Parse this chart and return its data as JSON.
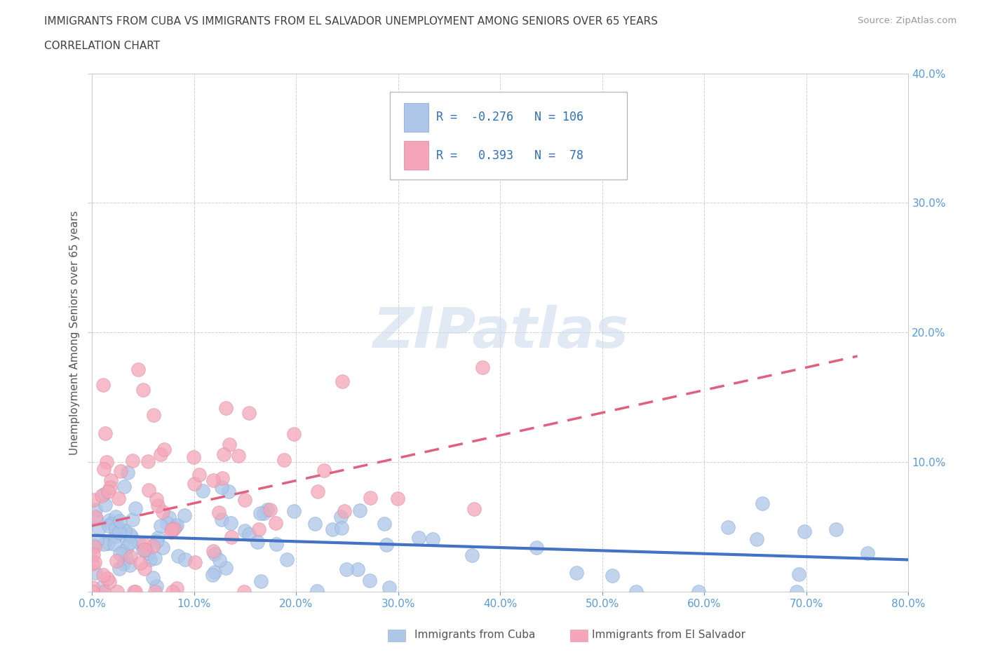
{
  "title_line1": "IMMIGRANTS FROM CUBA VS IMMIGRANTS FROM EL SALVADOR UNEMPLOYMENT AMONG SENIORS OVER 65 YEARS",
  "title_line2": "CORRELATION CHART",
  "source_text": "Source: ZipAtlas.com",
  "xlim": [
    0.0,
    0.8
  ],
  "ylim": [
    0.0,
    0.4
  ],
  "ylabel": "Unemployment Among Seniors over 65 years",
  "cuba_R": -0.276,
  "cuba_N": 106,
  "salvador_R": 0.393,
  "salvador_N": 78,
  "cuba_color": "#aec6e8",
  "salvador_color": "#f4a6b8",
  "cuba_line_color": "#4472c4",
  "salvador_line_color": "#e06080",
  "legend_label_cuba": "Immigrants from Cuba",
  "legend_label_salvador": "Immigrants from El Salvador",
  "watermark": "ZIPatlas",
  "background_color": "#ffffff",
  "grid_color": "#cccccc",
  "title_color": "#404040",
  "axis_tick_color": "#5b9bd5"
}
